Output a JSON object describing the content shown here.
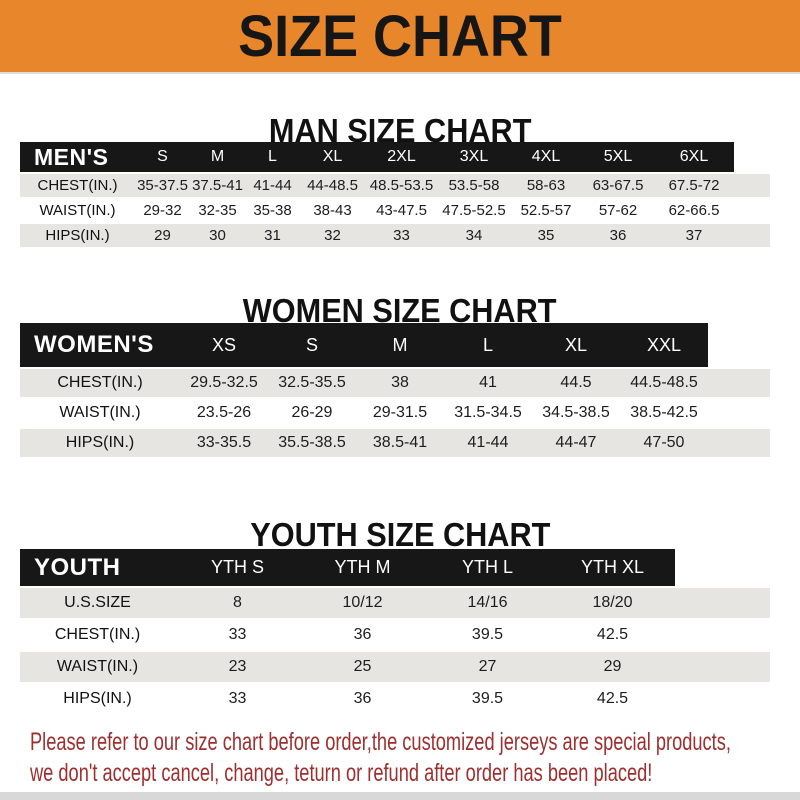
{
  "banner": {
    "title": "SIZE CHART"
  },
  "sections": {
    "man": {
      "heading": "MAN SIZE CHART",
      "table": {
        "header": [
          "MEN'S",
          "S",
          "M",
          "L",
          "XL",
          "2XL",
          "3XL",
          "4XL",
          "5XL",
          "6XL"
        ],
        "rows": [
          [
            "CHEST(IN.)",
            "35-37.5",
            "37.5-41",
            "41-44",
            "44-48.5",
            "48.5-53.5",
            "53.5-58",
            "58-63",
            "63-67.5",
            "67.5-72"
          ],
          [
            "WAIST(IN.)",
            "29-32",
            "32-35",
            "35-38",
            "38-43",
            "43-47.5",
            "47.5-52.5",
            "52.5-57",
            "57-62",
            "62-66.5"
          ],
          [
            "HIPS(IN.)",
            "29",
            "30",
            "31",
            "32",
            "33",
            "34",
            "35",
            "36",
            "37"
          ]
        ]
      }
    },
    "women": {
      "heading": "WOMEN SIZE CHART",
      "table": {
        "header": [
          "WOMEN'S",
          "XS",
          "S",
          "M",
          "L",
          "XL",
          "XXL"
        ],
        "rows": [
          [
            "CHEST(IN.)",
            "29.5-32.5",
            "32.5-35.5",
            "38",
            "41",
            "44.5",
            "44.5-48.5"
          ],
          [
            "WAIST(IN.)",
            "23.5-26",
            "26-29",
            "29-31.5",
            "31.5-34.5",
            "34.5-38.5",
            "38.5-42.5"
          ],
          [
            "HIPS(IN.)",
            "33-35.5",
            "35.5-38.5",
            "38.5-41",
            "41-44",
            "44-47",
            "47-50"
          ]
        ]
      }
    },
    "youth": {
      "heading": "YOUTH SIZE CHART",
      "table": {
        "header": [
          "YOUTH",
          "YTH S",
          "YTH M",
          "YTH L",
          "YTH XL"
        ],
        "rows": [
          [
            "U.S.SIZE",
            "8",
            "10/12",
            "14/16",
            "18/20"
          ],
          [
            "CHEST(IN.)",
            "33",
            "36",
            "39.5",
            "42.5"
          ],
          [
            "WAIST(IN.)",
            "23",
            "25",
            "27",
            "29"
          ],
          [
            "HIPS(IN.)",
            "33",
            "36",
            "39.5",
            "42.5"
          ]
        ]
      }
    }
  },
  "footer": {
    "line1": "Please refer to our size chart before order,the customized jerseys are special products,",
    "line2": "we don't accept cancel, change, teturn or refund after order has been placed!"
  },
  "colors": {
    "banner_bg": "#E8862C",
    "banner_text": "#161616",
    "table_header_bg": "#171717",
    "table_header_text": "#FFFFFF",
    "row_shade": "#E6E5E2",
    "footer_text": "#9E2F2F"
  }
}
